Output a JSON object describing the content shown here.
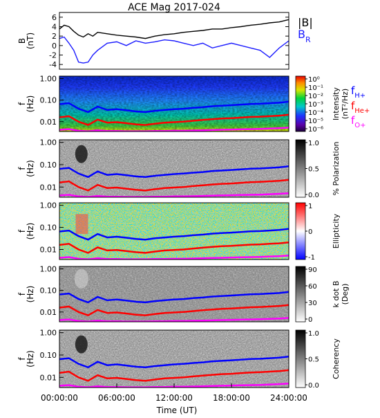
{
  "title": "ACE Mag 2017-024",
  "colors": {
    "B_total": "#000000",
    "B_R": "#1a1aff",
    "f_H": "#0000ff",
    "f_He": "#ff0000",
    "f_O": "#ff00ff"
  },
  "legend_top": {
    "b_total": "|B|",
    "b_r_main": "B",
    "b_r_sub": "R"
  },
  "legend_spec": [
    {
      "main": "f",
      "sub": "H+"
    },
    {
      "main": "f",
      "sub": "He+"
    },
    {
      "main": "f",
      "sub": "O+"
    }
  ],
  "x_axis": {
    "label": "Time (UT)",
    "ticks": [
      "00:00:00",
      "06:00:00",
      "12:00:00",
      "18:00:00",
      "24:00:00"
    ],
    "range_hours": [
      0,
      24
    ]
  },
  "chart_data": [
    {
      "type": "line",
      "ylabel": "B",
      "yunit": "(nT)",
      "ylim": [
        -5,
        7
      ],
      "yticks": [
        "6",
        "4",
        "2",
        "0",
        "-2",
        "-4"
      ],
      "x_hours": [
        0,
        0.5,
        1,
        1.5,
        2,
        2.5,
        3,
        3.5,
        4,
        5,
        6,
        7,
        8,
        9,
        10,
        11,
        12,
        13,
        14,
        15,
        16,
        17,
        18,
        19,
        20,
        21,
        22,
        23,
        24
      ],
      "series": [
        {
          "name": "|B|",
          "values": [
            3.5,
            4.3,
            4.0,
            3.0,
            2.2,
            1.8,
            2.5,
            2.0,
            2.8,
            2.5,
            2.2,
            2.0,
            1.8,
            1.5,
            2.0,
            2.3,
            2.5,
            2.8,
            3.0,
            3.2,
            3.5,
            3.5,
            3.8,
            4.0,
            4.3,
            4.5,
            4.8,
            5.0,
            5.5
          ]
        },
        {
          "name": "B_R",
          "values": [
            1.5,
            1.8,
            0.5,
            -1.0,
            -3.5,
            -3.7,
            -3.5,
            -2.0,
            -1.0,
            0.5,
            0.8,
            0.0,
            1.0,
            0.5,
            0.8,
            1.2,
            1.0,
            0.5,
            0.0,
            0.5,
            -0.5,
            0.0,
            0.5,
            0.0,
            -0.5,
            -1.0,
            -2.5,
            -0.5,
            1.0
          ]
        }
      ]
    },
    {
      "type": "heatmap",
      "ylabel": "f",
      "yunit": "(Hz)",
      "yscale": "log",
      "ylim": [
        0.0035,
        1.3
      ],
      "yticks": [
        "1.00",
        "0.10",
        "0.01"
      ],
      "colorbar_label": "Intensity",
      "colorbar_unit": "(nT²/Hz)",
      "colorbar_ticks": [
        "10⁰",
        "10⁻¹",
        "10⁻²",
        "10⁻³",
        "10⁻⁴",
        "10⁻⁵",
        "10⁻⁶"
      ],
      "colorbar_range": [
        "10⁻⁶",
        "10⁰"
      ]
    },
    {
      "type": "heatmap",
      "ylabel": "f",
      "yunit": "(Hz)",
      "yscale": "log",
      "yticks": [
        "1.00",
        "0.10",
        "0.01"
      ],
      "colorbar_label": "% Polarization",
      "colorbar_ticks": [
        "1.0",
        "0.5",
        "0.0"
      ],
      "colorbar_range": [
        0,
        1
      ]
    },
    {
      "type": "heatmap",
      "ylabel": "f",
      "yunit": "(Hz)",
      "yscale": "log",
      "yticks": [
        "1.00",
        "0.10",
        "0.01"
      ],
      "colorbar_label": "Ellipticity",
      "colorbar_ticks": [
        "1",
        "0",
        "-1"
      ],
      "colorbar_range": [
        -1,
        1
      ]
    },
    {
      "type": "heatmap",
      "ylabel": "f",
      "yunit": "(Hz)",
      "yscale": "log",
      "yticks": [
        "1.00",
        "0.10",
        "0.01"
      ],
      "colorbar_label": "k dot B",
      "colorbar_unit": "(Deg)",
      "colorbar_ticks": [
        "90",
        "60",
        "30",
        "0"
      ],
      "colorbar_range": [
        0,
        90
      ]
    },
    {
      "type": "heatmap",
      "ylabel": "f",
      "yunit": "(Hz)",
      "yscale": "log",
      "yticks": [
        "1.00",
        "0.10",
        "0.01"
      ],
      "colorbar_label": "Coherency",
      "colorbar_ticks": [
        "1.0",
        "0.5",
        "0.0"
      ],
      "colorbar_range": [
        0,
        1
      ]
    }
  ],
  "gyrofrequency_lines": {
    "x_hours": [
      0,
      1,
      2,
      3,
      4,
      5,
      6,
      7,
      8,
      9,
      10,
      11,
      12,
      13,
      14,
      15,
      16,
      17,
      18,
      19,
      20,
      21,
      22,
      23,
      24
    ],
    "f_H+": [
      0.065,
      0.072,
      0.04,
      0.028,
      0.05,
      0.035,
      0.038,
      0.034,
      0.03,
      0.028,
      0.032,
      0.035,
      0.038,
      0.04,
      0.044,
      0.047,
      0.052,
      0.055,
      0.058,
      0.062,
      0.066,
      0.068,
      0.072,
      0.076,
      0.085
    ],
    "f_He+": [
      0.016,
      0.018,
      0.01,
      0.007,
      0.0125,
      0.009,
      0.0095,
      0.0085,
      0.0075,
      0.007,
      0.008,
      0.009,
      0.0095,
      0.01,
      0.011,
      0.012,
      0.013,
      0.014,
      0.0145,
      0.0155,
      0.0165,
      0.017,
      0.018,
      0.019,
      0.021
    ],
    "f_O+": [
      0.0042,
      0.0045,
      0.0038,
      0.0036,
      0.004,
      0.0037,
      0.0037,
      0.0036,
      0.0036,
      0.0036,
      0.0037,
      0.0037,
      0.0038,
      0.0038,
      0.0039,
      0.004,
      0.0041,
      0.0042,
      0.0043,
      0.0044,
      0.0045,
      0.0046,
      0.0048,
      0.005,
      0.0053
    ]
  }
}
